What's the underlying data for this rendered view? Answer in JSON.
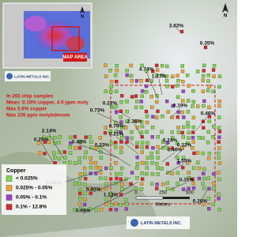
{
  "inset": {
    "north": "N",
    "map_area": "MAP AREA",
    "logo": "LATIN METALS INC."
  },
  "north": "N",
  "summary": [
    "In 265 chip samples",
    "Mean: 0.10% copper, 4.9 ppm moly",
    "Max 5.8% copper",
    "Max 236 ppm molybdenum"
  ],
  "sample_labels": [
    "3.82%",
    "0.35%",
    "4.74%",
    "1.27%",
    "0.19%",
    "0.22%",
    "0.73%",
    "2.36%",
    "0.46%",
    "0.79%",
    "0.21%",
    "0.24%",
    "0.32%",
    "0.48%",
    "0.23%",
    "0.46%",
    "1.55%",
    "2.14%",
    "0.25%",
    "0.49%",
    "5.80%",
    "1.13%",
    "0.31%",
    "0.69%",
    "0.20%"
  ],
  "legend": {
    "title": "Copper",
    "items": [
      {
        "label": "< 0.025%",
        "color": "#7fd64a"
      },
      {
        "label": "0.025% - 0.05%",
        "color": "#f0a52c"
      },
      {
        "label": "0.05% - 0.1%",
        "color": "#a040d0"
      },
      {
        "label": "0.1% - 12.8%",
        "color": "#e0242a"
      }
    ]
  },
  "scale": {
    "ticks": [
      "0",
      "250",
      "500"
    ],
    "unit": "Meters"
  },
  "logo": "LATIN METALS INC."
}
